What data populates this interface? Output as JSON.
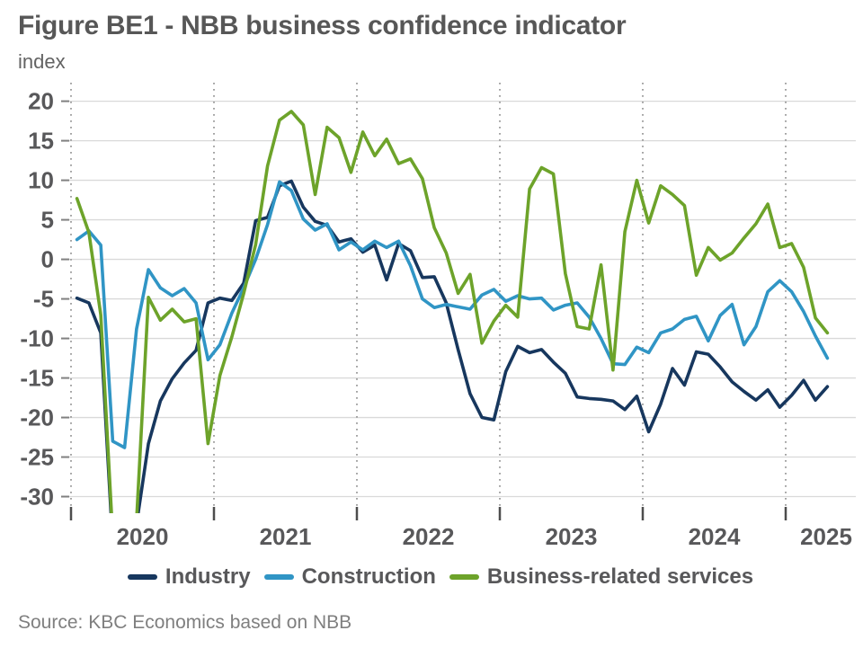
{
  "header": {
    "title": "Figure BE1 - NBB business confidence indicator",
    "y_axis_unit": "index"
  },
  "source_note": "Source: KBC Economics based on NBB",
  "chart_data": {
    "type": "line",
    "title": "Figure BE1 - NBB business confidence indicator",
    "ylabel": "index",
    "xlabel": "",
    "frequency": "monthly",
    "x_start": "2020-01",
    "x_end": "2025-04",
    "ylim": [
      -32.1,
      22.0
    ],
    "y_ticks": [
      20,
      15,
      10,
      5,
      0,
      -5,
      -10,
      -15,
      -20,
      -25,
      -30
    ],
    "x_tick_years": [
      "2020",
      "2021",
      "2022",
      "2023",
      "2024",
      "2025"
    ],
    "grid": "horizontal",
    "legend_position": "bottom",
    "note": "Industry and services series fall below the visible axis minimum (to about -36) in April-May 2020",
    "series": [
      {
        "name": "Industry",
        "color": "#17375e",
        "values": [
          -4.9,
          -5.5,
          -9.3,
          -36.0,
          -34.5,
          -33.5,
          -23.3,
          -17.9,
          -15.1,
          -13.1,
          -11.5,
          -5.5,
          -4.9,
          -5.2,
          -3.0,
          4.9,
          5.3,
          9.3,
          9.9,
          6.6,
          4.8,
          4.3,
          2.2,
          2.6,
          0.9,
          1.8,
          -2.6,
          2.0,
          1.1,
          -2.3,
          -2.2,
          -5.5,
          -11.4,
          -17.0,
          -20.0,
          -20.3,
          -14.2,
          -11.0,
          -11.8,
          -11.4,
          -13.0,
          -14.4,
          -17.4,
          -17.6,
          -17.7,
          -17.9,
          -19.0,
          -17.3,
          -21.8,
          -18.3,
          -13.8,
          -15.9,
          -11.7,
          -12.0,
          -13.6,
          -15.5,
          -16.7,
          -17.8,
          -16.5,
          -18.7,
          -17.2,
          -15.3,
          -17.8,
          -16.1
        ]
      },
      {
        "name": "Construction",
        "color": "#3095c5",
        "values": [
          2.5,
          3.6,
          1.8,
          -23.0,
          -23.8,
          -8.8,
          -1.3,
          -3.6,
          -4.6,
          -3.7,
          -5.5,
          -12.7,
          -10.8,
          -6.8,
          -3.6,
          0.0,
          4.4,
          9.8,
          8.7,
          5.1,
          3.7,
          4.5,
          1.2,
          2.2,
          1.2,
          2.3,
          1.5,
          2.3,
          -0.8,
          -5.0,
          -6.1,
          -5.7,
          -6.0,
          -6.3,
          -4.5,
          -3.8,
          -5.3,
          -4.6,
          -5.0,
          -4.9,
          -6.4,
          -5.8,
          -5.5,
          -7.3,
          -10.0,
          -13.2,
          -13.3,
          -11.1,
          -11.8,
          -9.3,
          -8.8,
          -7.6,
          -7.2,
          -10.3,
          -7.1,
          -5.7,
          -10.8,
          -8.5,
          -4.1,
          -2.7,
          -4.1,
          -6.6,
          -9.7,
          -12.5
        ]
      },
      {
        "name": "Business-related services",
        "color": "#6da32a",
        "values": [
          7.7,
          3.4,
          -7.0,
          -35.0,
          -34.0,
          -33.0,
          -4.8,
          -7.7,
          -6.3,
          -7.9,
          -7.5,
          -23.3,
          -14.7,
          -9.8,
          -4.3,
          1.9,
          11.8,
          17.6,
          18.7,
          17.0,
          8.2,
          16.7,
          15.4,
          11.0,
          16.1,
          13.1,
          15.2,
          12.1,
          12.7,
          10.2,
          4.0,
          0.8,
          -4.3,
          -1.9,
          -10.6,
          -7.8,
          -5.8,
          -7.3,
          8.9,
          11.6,
          10.8,
          -1.8,
          -8.5,
          -8.8,
          -0.7,
          -14.0,
          3.5,
          10.0,
          4.6,
          9.3,
          8.2,
          6.8,
          -2.0,
          1.5,
          -0.1,
          0.8,
          2.7,
          4.5,
          7.0,
          1.5,
          2.0,
          -1.0,
          -7.4,
          -9.3
        ]
      }
    ],
    "style_colors": {
      "gridline": "#d9d9d9",
      "dotted_year_line": "#999999",
      "tick_mark": "#4d4d4d",
      "axis_text": "#58585a",
      "title_text": "#575757",
      "source_text": "#7f7f7f"
    }
  }
}
